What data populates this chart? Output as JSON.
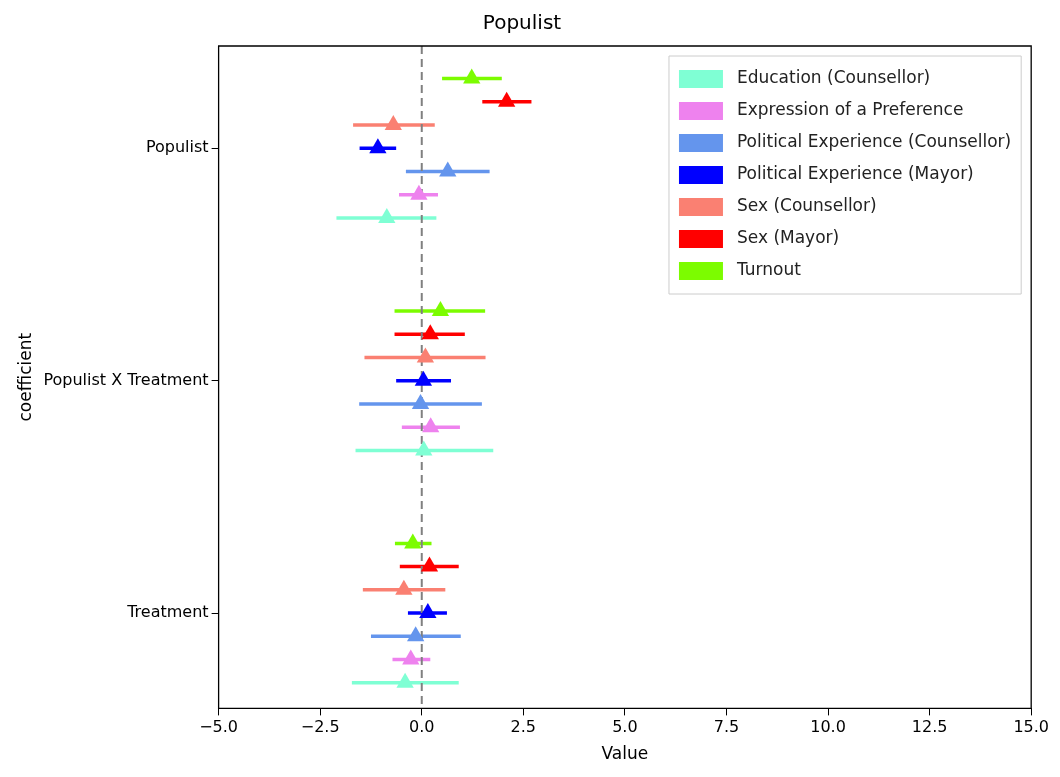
{
  "chart_data": {
    "type": "scatter",
    "orientation": "horizontal",
    "title": "Populist",
    "xlabel": "Value",
    "ylabel": "coefficient",
    "categories": [
      "Populist",
      "Populist X Treatment",
      "Treatment"
    ],
    "series": [
      {
        "name": "Education (Counsellor)",
        "color": "#7fffd4",
        "values": [
          -0.86,
          0.05,
          -0.41
        ],
        "errors": [
          [
            -2.1,
            0.36
          ],
          [
            -1.63,
            1.76
          ],
          [
            -1.72,
            0.91
          ]
        ]
      },
      {
        "name": "Expression of a Preference",
        "color": "#ee82ee",
        "values": [
          -0.07,
          0.22,
          -0.27
        ],
        "errors": [
          [
            -0.56,
            0.4
          ],
          [
            -0.49,
            0.94
          ],
          [
            -0.72,
            0.21
          ]
        ]
      },
      {
        "name": "Political Experience (Counsellor)",
        "color": "#6495ed",
        "values": [
          0.64,
          -0.03,
          -0.15
        ],
        "errors": [
          [
            -0.39,
            1.67
          ],
          [
            -1.54,
            1.48
          ],
          [
            -1.25,
            0.96
          ]
        ]
      },
      {
        "name": "Political Experience (Mayor)",
        "color": "#0000ff",
        "values": [
          -1.08,
          0.04,
          0.15
        ],
        "errors": [
          [
            -1.53,
            -0.63
          ],
          [
            -0.63,
            0.72
          ],
          [
            -0.34,
            0.62
          ]
        ]
      },
      {
        "name": "Sex (Counsellor)",
        "color": "#fa8072",
        "values": [
          -0.7,
          0.09,
          -0.44
        ],
        "errors": [
          [
            -1.69,
            0.32
          ],
          [
            -1.41,
            1.57
          ],
          [
            -1.45,
            0.58
          ]
        ]
      },
      {
        "name": "Sex (Mayor)",
        "color": "#ff0000",
        "values": [
          2.09,
          0.21,
          0.19
        ],
        "errors": [
          [
            1.49,
            2.7
          ],
          [
            -0.67,
            1.06
          ],
          [
            -0.54,
            0.91
          ]
        ]
      },
      {
        "name": "Turnout",
        "color": "#7cfc00",
        "values": [
          1.23,
          0.46,
          -0.22
        ],
        "errors": [
          [
            0.5,
            1.97
          ],
          [
            -0.67,
            1.56
          ],
          [
            -0.66,
            0.24
          ]
        ]
      }
    ],
    "xlim": [
      -5,
      15
    ],
    "xticks": [
      {
        "value": -5,
        "label": "−5.0"
      },
      {
        "value": -2.5,
        "label": "−2.5"
      },
      {
        "value": 0,
        "label": "0.0"
      },
      2.5,
      {
        "value": 5,
        "label": "5.0"
      },
      7.5,
      {
        "value": 10,
        "label": "10.0"
      },
      12.5,
      {
        "value": 15,
        "label": "15.0"
      }
    ],
    "ref_lines": [
      {
        "axis": "x",
        "value": 0,
        "color": "#808080",
        "line_style": "dashed"
      }
    ],
    "marker": "triangle",
    "legend": "top right",
    "grid": false
  }
}
